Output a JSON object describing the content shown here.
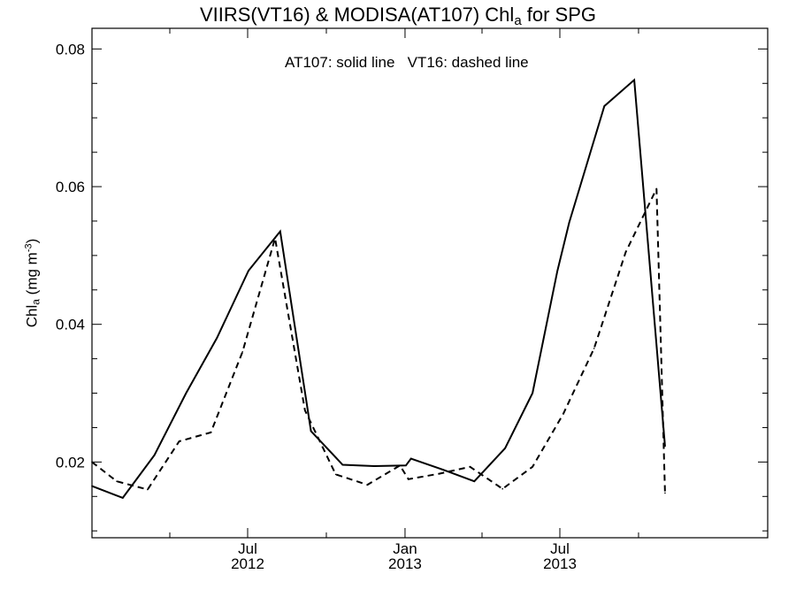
{
  "chart_data": {
    "type": "line",
    "title_main": "VIIRS(VT16) & MODISA(AT107)  Chl",
    "title_sub": "a",
    "title_tail": " for SPG",
    "annotation": "AT107: solid line   VT16: dashed line",
    "ylabel_main": "Chl",
    "ylabel_sub": "a",
    "ylabel_unit": " (mg m",
    "ylabel_sup": "-3",
    "ylabel_close": ")",
    "ylim": [
      0.009,
      0.083
    ],
    "yticks": [
      0.02,
      0.04,
      0.06,
      0.08
    ],
    "ytick_labels": [
      "0.02",
      "0.04",
      "0.06",
      "0.08"
    ],
    "y_minor_step": 0.005,
    "xlim": [
      "2012-01-01",
      "2014-03-01"
    ],
    "xticks": [
      {
        "date": "2012-07-01",
        "month": "Jul",
        "year": "2012"
      },
      {
        "date": "2013-01-01",
        "month": "Jan",
        "year": "2013"
      },
      {
        "date": "2013-07-01",
        "month": "Jul",
        "year": "2013"
      }
    ],
    "x_minor_ticks": [
      "2012-04-01",
      "2012-10-01",
      "2013-04-01",
      "2013-10-01"
    ],
    "series": [
      {
        "style": "solid",
        "x": [
          "2012-01-01",
          "2012-02-06",
          "2012-03-14",
          "2012-04-20",
          "2012-05-26",
          "2012-07-02",
          "2012-08-08",
          "2012-09-13",
          "2012-10-20",
          "2012-11-26",
          "2013-01-02",
          "2013-01-08",
          "2013-02-14",
          "2013-03-23",
          "2013-04-28",
          "2013-05-30",
          "2013-06-28",
          "2013-07-12",
          "2013-08-22",
          "2013-09-26",
          "2013-11-01"
        ],
        "values": [
          0.0165,
          0.0148,
          0.021,
          0.03,
          0.038,
          0.0478,
          0.0535,
          0.0245,
          0.0196,
          0.0194,
          0.0195,
          0.0205,
          0.0189,
          0.0172,
          0.022,
          0.03,
          0.0477,
          0.0548,
          0.0717,
          0.0755,
          0.0223
        ]
      },
      {
        "style": "dashed",
        "x": [
          "2012-01-01",
          "2012-01-30",
          "2012-03-06",
          "2012-04-12",
          "2012-05-19",
          "2012-06-25",
          "2012-08-02",
          "2012-09-06",
          "2012-10-12",
          "2012-11-18",
          "2012-12-26",
          "2013-01-05",
          "2013-02-10",
          "2013-03-18",
          "2013-04-25",
          "2013-05-30",
          "2013-07-05",
          "2013-08-10",
          "2013-09-16",
          "2013-10-22",
          "2013-11-01"
        ],
        "values": [
          0.02,
          0.0172,
          0.016,
          0.023,
          0.0243,
          0.036,
          0.0525,
          0.0275,
          0.0182,
          0.0167,
          0.0195,
          0.0175,
          0.0183,
          0.0193,
          0.0161,
          0.0193,
          0.027,
          0.0365,
          0.0505,
          0.0597,
          0.0155
        ]
      }
    ]
  }
}
